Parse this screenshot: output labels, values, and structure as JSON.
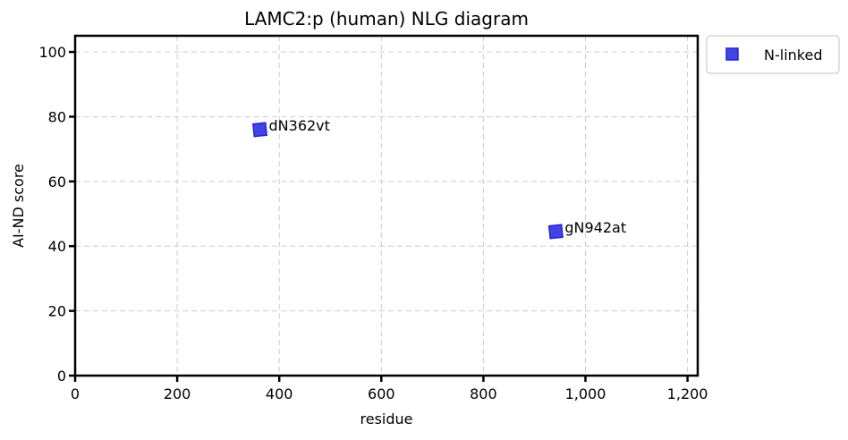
{
  "chart_data": {
    "type": "scatter",
    "title": "LAMC2:p (human) NLG diagram",
    "xlabel": "residue",
    "ylabel": "AI-ND score",
    "xlim": [
      0,
      1220
    ],
    "ylim": [
      0,
      105
    ],
    "xticks": [
      0,
      200,
      400,
      600,
      800,
      1000,
      1200
    ],
    "xtick_labels": [
      "0",
      "200",
      "400",
      "600",
      "800",
      "1,000",
      "1,200"
    ],
    "yticks": [
      0,
      20,
      40,
      60,
      80,
      100
    ],
    "ytick_labels": [
      "0",
      "20",
      "40",
      "60",
      "80",
      "100"
    ],
    "grid": true,
    "legend_position": "outside-top-right",
    "series": [
      {
        "name": "N-linked",
        "color": "#2222dd",
        "marker": "square",
        "points": [
          {
            "x": 362,
            "y": 76,
            "label": "dN362vt"
          },
          {
            "x": 942,
            "y": 44.5,
            "label": "gN942at"
          }
        ]
      }
    ]
  }
}
